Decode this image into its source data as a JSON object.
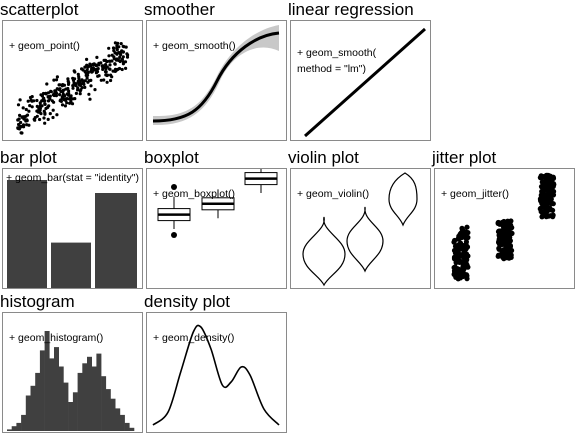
{
  "panels": {
    "scatterplot": {
      "title": "scatterplot",
      "label": "+ geom_point()"
    },
    "smoother": {
      "title": "smoother",
      "label": "+ geom_smooth()"
    },
    "linear_regression": {
      "title": "linear regression",
      "label": "+ geom_smooth(\nmethod = \"lm\")"
    },
    "bar_plot": {
      "title": "bar plot",
      "label": "+ geom_bar(stat = \"identity\")"
    },
    "boxplot": {
      "title": "boxplot",
      "label": "+ geom_boxplot()"
    },
    "violin_plot": {
      "title": "violin plot",
      "label": "+ geom_violin()"
    },
    "jitter_plot": {
      "title": "jitter plot",
      "label": "+ geom_jitter()"
    },
    "histogram": {
      "title": "histogram",
      "label": "+ geom_histogram()"
    },
    "density_plot": {
      "title": "density plot",
      "label": "+ geom_density()"
    }
  },
  "colors": {
    "ink": "#000000",
    "fill": "#404040",
    "band": "#c8c8c8",
    "border": "#8a8a8a"
  },
  "chart_data": {
    "bar_values": [
      100,
      42,
      88
    ],
    "boxplot_groups": [
      {
        "min": 15,
        "q1": 22,
        "median": 27,
        "q3": 32,
        "max": 42,
        "outliers": [
          10,
          50
        ]
      },
      {
        "min": 24,
        "q1": 31,
        "median": 36,
        "q3": 41,
        "max": 48
      },
      {
        "min": 45,
        "q1": 52,
        "median": 57,
        "q3": 62,
        "max": 72
      }
    ],
    "histogram_counts": [
      1,
      3,
      5,
      10,
      22,
      28,
      36,
      50,
      62,
      45,
      52,
      40,
      30,
      18,
      24,
      36,
      42,
      46,
      40,
      48,
      34,
      26,
      20,
      14,
      10,
      5,
      2
    ],
    "density_curve": [
      [
        0,
        0.02
      ],
      [
        0.12,
        0.15
      ],
      [
        0.22,
        0.55
      ],
      [
        0.32,
        0.95
      ],
      [
        0.38,
        1.0
      ],
      [
        0.46,
        0.78
      ],
      [
        0.55,
        0.42
      ],
      [
        0.62,
        0.45
      ],
      [
        0.7,
        0.6
      ],
      [
        0.77,
        0.52
      ],
      [
        0.88,
        0.18
      ],
      [
        1.0,
        0.02
      ]
    ]
  }
}
